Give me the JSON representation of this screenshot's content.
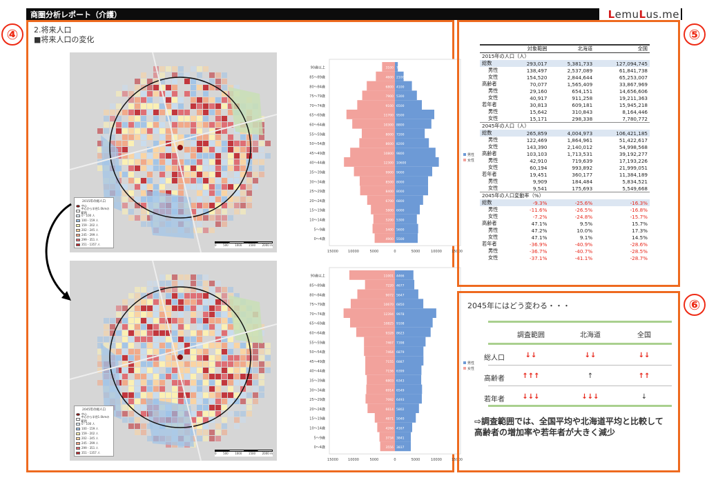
{
  "header": {
    "title": "商圏分析レポート（介護）",
    "logo_parts": [
      "L",
      "emu",
      "L",
      "us.me"
    ]
  },
  "badges": {
    "p4": "④",
    "p5": "⑤",
    "p6": "⑥"
  },
  "panel4": {
    "section": "2.将来人口",
    "subsection": "■将来人口の変化",
    "map_top": {
      "legend_title": "2015年の総人口",
      "legend_items": [
        "中心",
        "中心から半径1.0kmの範囲",
        "0 - 100 人",
        "100 - 159 人",
        "159 - 202 人",
        "202 - 245 人",
        "245 - 299 人",
        "299 - 351 人",
        "351 - 1357 人"
      ],
      "scale_labels": [
        "0",
        "500",
        "1000",
        "1500",
        "2000 m"
      ]
    },
    "map_bottom": {
      "legend_title": "2045年の総人口",
      "legend_items": [
        "中心",
        "中心から半径1.0kmの範囲",
        "0 - 100 人",
        "100 - 159 人",
        "159 - 202 人",
        "202 - 245 人",
        "245 - 299 人",
        "299 - 351 人",
        "351 - 1357 人"
      ],
      "scale_labels": [
        "0",
        "500",
        "1000",
        "1500",
        "2000 m"
      ]
    },
    "age_groups": [
      "90歳以上",
      "85～89歳",
      "80～84歳",
      "75～79歳",
      "70～74歳",
      "65～69歳",
      "60～64歳",
      "55～59歳",
      "50～54歳",
      "45～49歳",
      "40～44歳",
      "35～39歳",
      "30～34歳",
      "25～29歳",
      "20～24歳",
      "15～19歳",
      "10～14歳",
      "5～9歳",
      "0～4歳"
    ],
    "pyramid_legend": [
      "男性",
      "女性"
    ],
    "x_axis_ticks": [
      "15000",
      "10000",
      "5000",
      "0",
      "5000",
      "10000",
      "15000"
    ],
    "colors": {
      "male": "#6d9ad6",
      "female": "#f2a29c",
      "accent": "#ee6a1f"
    }
  },
  "chart_data": [
    {
      "type": "bar",
      "title": "",
      "xlabel": "",
      "ylabel": "",
      "xlim": [
        -15000,
        15000
      ],
      "categories": [
        "90歳以上",
        "85～89歳",
        "80～84歳",
        "75～79歳",
        "70～74歳",
        "65～69歳",
        "60～64歳",
        "55～59歳",
        "50～54歳",
        "45～49歳",
        "40～44歳",
        "35～39歳",
        "30～34歳",
        "25～29歳",
        "20～24歳",
        "15～19歳",
        "10～14歳",
        "5～9歳",
        "0～4歳"
      ],
      "series": [
        {
          "name": "男性",
          "values": [
            700,
            2100,
            4100,
            5300,
            6500,
            9500,
            8800,
            7200,
            8200,
            9800,
            10600,
            9000,
            8000,
            8000,
            6800,
            6000,
            5300,
            5600,
            5500
          ]
        },
        {
          "name": "女性",
          "values": [
            3100,
            4600,
            6800,
            7900,
            9100,
            11700,
            10300,
            8000,
            8600,
            10800,
            12300,
            9900,
            8500,
            8400,
            6700,
            5800,
            5200,
            5400,
            4900
          ]
        }
      ]
    },
    {
      "type": "bar",
      "title": "",
      "xlabel": "",
      "ylabel": "",
      "xlim": [
        -15000,
        15000
      ],
      "categories": [
        "90歳以上",
        "85～89歳",
        "80～84歳",
        "75～79歳",
        "70～74歳",
        "65～69歳",
        "60～64歳",
        "55～59歳",
        "50～54歳",
        "45～49歳",
        "40～44歳",
        "35～39歳",
        "30～34歳",
        "25～29歳",
        "20～24歳",
        "15～19歳",
        "10～14歳",
        "5～9歳",
        "0～4歳"
      ],
      "series": [
        {
          "name": "男性",
          "values": [
            4466,
            4677,
            5647,
            6850,
            9978,
            9108,
            8623,
            7398,
            6879,
            6887,
            6399,
            6343,
            6549,
            6493,
            5802,
            5040,
            4167,
            3841,
            3837
          ]
        },
        {
          "name": "女性",
          "values": [
            11001,
            7220,
            9072,
            10670,
            12394,
            10825,
            9328,
            7467,
            7464,
            7155,
            7156,
            6803,
            6914,
            7092,
            6614,
            4871,
            4266,
            3734,
            3556
          ]
        }
      ]
    }
  ],
  "panel5": {
    "columns": [
      "",
      "対象範囲",
      "北海道",
      "全国"
    ],
    "sections": [
      {
        "title": "2015年の人口（人）",
        "rows": [
          {
            "label": "総数",
            "indent": false,
            "total": true,
            "values": [
              "293,017",
              "5,381,733",
              "127,094,745"
            ],
            "red": [
              false,
              false,
              false
            ]
          },
          {
            "label": "男性",
            "indent": true,
            "values": [
              "138,497",
              "2,537,089",
              "61,841,738"
            ],
            "red": [
              false,
              false,
              false
            ]
          },
          {
            "label": "女性",
            "indent": true,
            "values": [
              "154,520",
              "2,844,644",
              "65,253,007"
            ],
            "red": [
              false,
              false,
              false
            ]
          },
          {
            "label": "高齢者",
            "indent": false,
            "values": [
              "70,077",
              "1,565,409",
              "33,867,969"
            ],
            "red": [
              false,
              false,
              false
            ]
          },
          {
            "label": "男性",
            "indent": true,
            "values": [
              "29,160",
              "654,151",
              "14,656,606"
            ],
            "red": [
              false,
              false,
              false
            ]
          },
          {
            "label": "女性",
            "indent": true,
            "values": [
              "40,917",
              "911,258",
              "19,211,363"
            ],
            "red": [
              false,
              false,
              false
            ]
          },
          {
            "label": "若年者",
            "indent": false,
            "values": [
              "30,813",
              "609,181",
              "15,945,218"
            ],
            "red": [
              false,
              false,
              false
            ]
          },
          {
            "label": "男性",
            "indent": true,
            "values": [
              "15,642",
              "310,843",
              "8,164,446"
            ],
            "red": [
              false,
              false,
              false
            ]
          },
          {
            "label": "女性",
            "indent": true,
            "values": [
              "15,171",
              "298,338",
              "7,780,772"
            ],
            "red": [
              false,
              false,
              false
            ]
          }
        ]
      },
      {
        "title": "2045年の人口（人）",
        "rows": [
          {
            "label": "総数",
            "indent": false,
            "total": true,
            "values": [
              "265,859",
              "4,004,973",
              "106,421,185"
            ],
            "red": [
              false,
              false,
              false
            ]
          },
          {
            "label": "男性",
            "indent": true,
            "values": [
              "122,469",
              "1,864,961",
              "51,422,617"
            ],
            "red": [
              false,
              false,
              false
            ]
          },
          {
            "label": "女性",
            "indent": true,
            "values": [
              "143,390",
              "2,140,012",
              "54,998,568"
            ],
            "red": [
              false,
              false,
              false
            ]
          },
          {
            "label": "高齢者",
            "indent": false,
            "values": [
              "103,103",
              "1,713,531",
              "39,192,277"
            ],
            "red": [
              false,
              false,
              false
            ]
          },
          {
            "label": "男性",
            "indent": true,
            "values": [
              "42,910",
              "719,639",
              "17,193,226"
            ],
            "red": [
              false,
              false,
              false
            ]
          },
          {
            "label": "女性",
            "indent": true,
            "values": [
              "60,194",
              "993,892",
              "21,999,051"
            ],
            "red": [
              false,
              false,
              false
            ]
          },
          {
            "label": "若年者",
            "indent": false,
            "values": [
              "19,451",
              "360,177",
              "11,384,189"
            ],
            "red": [
              false,
              false,
              false
            ]
          },
          {
            "label": "男性",
            "indent": true,
            "values": [
              "9,909",
              "184,484",
              "5,834,521"
            ],
            "red": [
              false,
              false,
              false
            ]
          },
          {
            "label": "女性",
            "indent": true,
            "values": [
              "9,541",
              "175,693",
              "5,549,668"
            ],
            "red": [
              false,
              false,
              false
            ]
          }
        ]
      },
      {
        "title": "2045年の人口変動率（%）",
        "rows": [
          {
            "label": "総数",
            "indent": false,
            "total": true,
            "values": [
              "-9.3%",
              "-25.6%",
              "-16.3%"
            ],
            "red": [
              true,
              true,
              true
            ]
          },
          {
            "label": "男性",
            "indent": true,
            "values": [
              "-11.6%",
              "-26.5%",
              "-16.8%"
            ],
            "red": [
              true,
              true,
              true
            ]
          },
          {
            "label": "女性",
            "indent": true,
            "values": [
              "-7.2%",
              "-24.8%",
              "-15.7%"
            ],
            "red": [
              true,
              true,
              true
            ]
          },
          {
            "label": "高齢者",
            "indent": false,
            "values": [
              "47.1%",
              "9.5%",
              "15.7%"
            ],
            "red": [
              false,
              false,
              false
            ]
          },
          {
            "label": "男性",
            "indent": true,
            "values": [
              "47.2%",
              "10.0%",
              "17.3%"
            ],
            "red": [
              false,
              false,
              false
            ]
          },
          {
            "label": "女性",
            "indent": true,
            "values": [
              "47.1%",
              "9.1%",
              "14.5%"
            ],
            "red": [
              false,
              false,
              false
            ]
          },
          {
            "label": "若年者",
            "indent": false,
            "values": [
              "-36.9%",
              "-40.9%",
              "-28.6%"
            ],
            "red": [
              true,
              true,
              true
            ]
          },
          {
            "label": "男性",
            "indent": true,
            "values": [
              "-36.7%",
              "-40.7%",
              "-28.5%"
            ],
            "red": [
              true,
              true,
              true
            ]
          },
          {
            "label": "女性",
            "indent": true,
            "values": [
              "-37.1%",
              "-41.1%",
              "-28.7%"
            ],
            "red": [
              true,
              true,
              true
            ]
          }
        ]
      }
    ]
  },
  "panel6": {
    "title": "2045年にはどう変わる・・・",
    "columns": [
      "調査範囲",
      "北海道",
      "全国"
    ],
    "rows": [
      {
        "label": "総人口",
        "cells": [
          "↓↓",
          "↓↓",
          "↓↓"
        ],
        "red": [
          true,
          true,
          true
        ]
      },
      {
        "label": "高齢者",
        "cells": [
          "↑↑↑",
          "↑",
          "↑↑"
        ],
        "red": [
          true,
          false,
          true
        ]
      },
      {
        "label": "若年者",
        "cells": [
          "↓↓↓",
          "↓↓↓",
          "↓"
        ],
        "red": [
          true,
          true,
          false
        ]
      }
    ],
    "note": "⇨調査範囲では、全国平均や北海道平均と比較して高齢者の増加率や若年者が大きく減少"
  }
}
